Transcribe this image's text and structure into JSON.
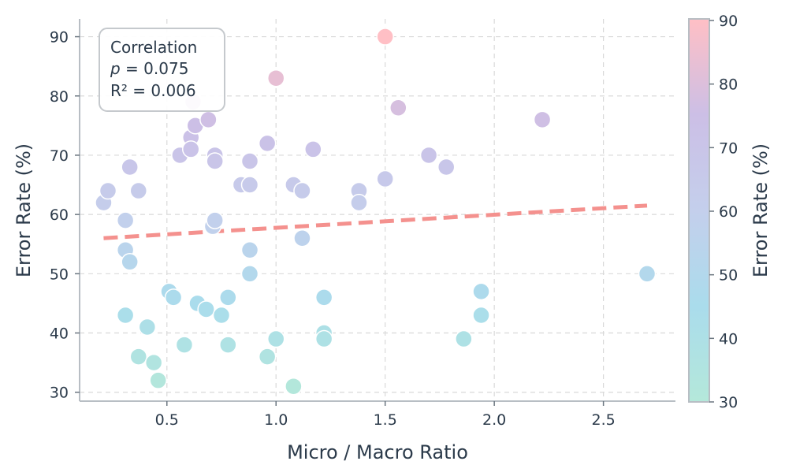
{
  "chart_data": {
    "type": "scatter",
    "xlabel": "Micro / Macro Ratio",
    "ylabel": "Error Rate (%)",
    "xlim": [
      0.1,
      2.83
    ],
    "ylim": [
      28.5,
      93
    ],
    "xticks": [
      0.5,
      1.0,
      1.5,
      2.0,
      2.5
    ],
    "xtick_labels": [
      "0.5",
      "1.0",
      "1.5",
      "2.0",
      "2.5"
    ],
    "yticks": [
      30,
      40,
      50,
      60,
      70,
      80,
      90
    ],
    "ytick_labels": [
      "30",
      "40",
      "50",
      "60",
      "70",
      "80",
      "90"
    ],
    "grid": true,
    "points": [
      {
        "x": 0.21,
        "y": 62
      },
      {
        "x": 0.23,
        "y": 64
      },
      {
        "x": 0.31,
        "y": 59
      },
      {
        "x": 0.31,
        "y": 54
      },
      {
        "x": 0.31,
        "y": 43
      },
      {
        "x": 0.33,
        "y": 68
      },
      {
        "x": 0.33,
        "y": 52
      },
      {
        "x": 0.37,
        "y": 64
      },
      {
        "x": 0.37,
        "y": 36
      },
      {
        "x": 0.41,
        "y": 41
      },
      {
        "x": 0.44,
        "y": 35
      },
      {
        "x": 0.46,
        "y": 32
      },
      {
        "x": 0.51,
        "y": 47
      },
      {
        "x": 0.53,
        "y": 46
      },
      {
        "x": 0.56,
        "y": 70
      },
      {
        "x": 0.58,
        "y": 38
      },
      {
        "x": 0.61,
        "y": 73
      },
      {
        "x": 0.61,
        "y": 71
      },
      {
        "x": 0.62,
        "y": 79
      },
      {
        "x": 0.63,
        "y": 75
      },
      {
        "x": 0.64,
        "y": 45
      },
      {
        "x": 0.68,
        "y": 44
      },
      {
        "x": 0.69,
        "y": 76
      },
      {
        "x": 0.71,
        "y": 58
      },
      {
        "x": 0.72,
        "y": 70
      },
      {
        "x": 0.72,
        "y": 69
      },
      {
        "x": 0.72,
        "y": 59
      },
      {
        "x": 0.75,
        "y": 43
      },
      {
        "x": 0.78,
        "y": 46
      },
      {
        "x": 0.78,
        "y": 38
      },
      {
        "x": 0.84,
        "y": 65
      },
      {
        "x": 0.88,
        "y": 69
      },
      {
        "x": 0.88,
        "y": 65
      },
      {
        "x": 0.88,
        "y": 54
      },
      {
        "x": 0.88,
        "y": 50
      },
      {
        "x": 0.96,
        "y": 72
      },
      {
        "x": 0.96,
        "y": 36
      },
      {
        "x": 1.0,
        "y": 83
      },
      {
        "x": 1.0,
        "y": 39
      },
      {
        "x": 1.08,
        "y": 65
      },
      {
        "x": 1.08,
        "y": 31
      },
      {
        "x": 1.12,
        "y": 64
      },
      {
        "x": 1.12,
        "y": 56
      },
      {
        "x": 1.17,
        "y": 71
      },
      {
        "x": 1.22,
        "y": 46
      },
      {
        "x": 1.22,
        "y": 40
      },
      {
        "x": 1.22,
        "y": 39
      },
      {
        "x": 1.38,
        "y": 64
      },
      {
        "x": 1.38,
        "y": 62
      },
      {
        "x": 1.5,
        "y": 90
      },
      {
        "x": 1.5,
        "y": 66
      },
      {
        "x": 1.56,
        "y": 78
      },
      {
        "x": 1.7,
        "y": 70
      },
      {
        "x": 1.78,
        "y": 68
      },
      {
        "x": 1.86,
        "y": 39
      },
      {
        "x": 1.94,
        "y": 47
      },
      {
        "x": 1.94,
        "y": 43
      },
      {
        "x": 2.22,
        "y": 76
      },
      {
        "x": 2.7,
        "y": 50
      }
    ],
    "trendline": {
      "x": [
        0.21,
        2.7
      ],
      "y": [
        56.0,
        61.5
      ],
      "color": "#f4918e",
      "style": "dashed"
    },
    "annotation": {
      "title": "Correlation",
      "p_label": "p",
      "p_value": " = 0.075",
      "r2": "R² = 0.006"
    },
    "colorbar": {
      "label": "Error Rate (%)",
      "range": [
        30,
        90
      ],
      "ticks": [
        30,
        40,
        50,
        60,
        70,
        80,
        90
      ],
      "tick_labels": [
        "30",
        "40",
        "50",
        "60",
        "70",
        "80",
        "90"
      ],
      "colors": [
        "#b4e8da",
        "#aadcec",
        "#c4cfec",
        "#ccbfe6",
        "#ffbfc5"
      ]
    }
  }
}
